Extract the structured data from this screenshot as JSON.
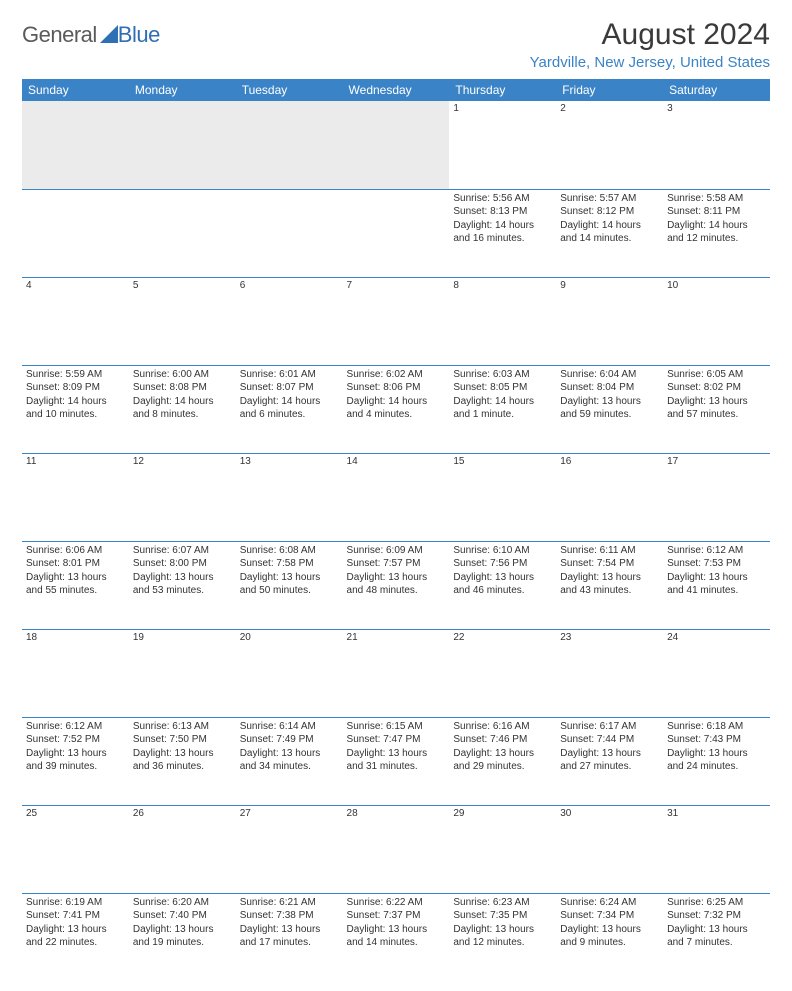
{
  "logo": {
    "part1": "General",
    "part2": "Blue"
  },
  "title": "August 2024",
  "location": "Yardville, New Jersey, United States",
  "colors": {
    "accent": "#3b83c7",
    "daynum_bg": "#ebebeb",
    "text": "#333333",
    "title_text": "#3a3a3a"
  },
  "day_headers": [
    "Sunday",
    "Monday",
    "Tuesday",
    "Wednesday",
    "Thursday",
    "Friday",
    "Saturday"
  ],
  "weeks": [
    [
      null,
      null,
      null,
      null,
      {
        "n": "1",
        "sr": "Sunrise: 5:56 AM",
        "ss": "Sunset: 8:13 PM",
        "d1": "Daylight: 14 hours",
        "d2": "and 16 minutes."
      },
      {
        "n": "2",
        "sr": "Sunrise: 5:57 AM",
        "ss": "Sunset: 8:12 PM",
        "d1": "Daylight: 14 hours",
        "d2": "and 14 minutes."
      },
      {
        "n": "3",
        "sr": "Sunrise: 5:58 AM",
        "ss": "Sunset: 8:11 PM",
        "d1": "Daylight: 14 hours",
        "d2": "and 12 minutes."
      }
    ],
    [
      {
        "n": "4",
        "sr": "Sunrise: 5:59 AM",
        "ss": "Sunset: 8:09 PM",
        "d1": "Daylight: 14 hours",
        "d2": "and 10 minutes."
      },
      {
        "n": "5",
        "sr": "Sunrise: 6:00 AM",
        "ss": "Sunset: 8:08 PM",
        "d1": "Daylight: 14 hours",
        "d2": "and 8 minutes."
      },
      {
        "n": "6",
        "sr": "Sunrise: 6:01 AM",
        "ss": "Sunset: 8:07 PM",
        "d1": "Daylight: 14 hours",
        "d2": "and 6 minutes."
      },
      {
        "n": "7",
        "sr": "Sunrise: 6:02 AM",
        "ss": "Sunset: 8:06 PM",
        "d1": "Daylight: 14 hours",
        "d2": "and 4 minutes."
      },
      {
        "n": "8",
        "sr": "Sunrise: 6:03 AM",
        "ss": "Sunset: 8:05 PM",
        "d1": "Daylight: 14 hours",
        "d2": "and 1 minute."
      },
      {
        "n": "9",
        "sr": "Sunrise: 6:04 AM",
        "ss": "Sunset: 8:04 PM",
        "d1": "Daylight: 13 hours",
        "d2": "and 59 minutes."
      },
      {
        "n": "10",
        "sr": "Sunrise: 6:05 AM",
        "ss": "Sunset: 8:02 PM",
        "d1": "Daylight: 13 hours",
        "d2": "and 57 minutes."
      }
    ],
    [
      {
        "n": "11",
        "sr": "Sunrise: 6:06 AM",
        "ss": "Sunset: 8:01 PM",
        "d1": "Daylight: 13 hours",
        "d2": "and 55 minutes."
      },
      {
        "n": "12",
        "sr": "Sunrise: 6:07 AM",
        "ss": "Sunset: 8:00 PM",
        "d1": "Daylight: 13 hours",
        "d2": "and 53 minutes."
      },
      {
        "n": "13",
        "sr": "Sunrise: 6:08 AM",
        "ss": "Sunset: 7:58 PM",
        "d1": "Daylight: 13 hours",
        "d2": "and 50 minutes."
      },
      {
        "n": "14",
        "sr": "Sunrise: 6:09 AM",
        "ss": "Sunset: 7:57 PM",
        "d1": "Daylight: 13 hours",
        "d2": "and 48 minutes."
      },
      {
        "n": "15",
        "sr": "Sunrise: 6:10 AM",
        "ss": "Sunset: 7:56 PM",
        "d1": "Daylight: 13 hours",
        "d2": "and 46 minutes."
      },
      {
        "n": "16",
        "sr": "Sunrise: 6:11 AM",
        "ss": "Sunset: 7:54 PM",
        "d1": "Daylight: 13 hours",
        "d2": "and 43 minutes."
      },
      {
        "n": "17",
        "sr": "Sunrise: 6:12 AM",
        "ss": "Sunset: 7:53 PM",
        "d1": "Daylight: 13 hours",
        "d2": "and 41 minutes."
      }
    ],
    [
      {
        "n": "18",
        "sr": "Sunrise: 6:12 AM",
        "ss": "Sunset: 7:52 PM",
        "d1": "Daylight: 13 hours",
        "d2": "and 39 minutes."
      },
      {
        "n": "19",
        "sr": "Sunrise: 6:13 AM",
        "ss": "Sunset: 7:50 PM",
        "d1": "Daylight: 13 hours",
        "d2": "and 36 minutes."
      },
      {
        "n": "20",
        "sr": "Sunrise: 6:14 AM",
        "ss": "Sunset: 7:49 PM",
        "d1": "Daylight: 13 hours",
        "d2": "and 34 minutes."
      },
      {
        "n": "21",
        "sr": "Sunrise: 6:15 AM",
        "ss": "Sunset: 7:47 PM",
        "d1": "Daylight: 13 hours",
        "d2": "and 31 minutes."
      },
      {
        "n": "22",
        "sr": "Sunrise: 6:16 AM",
        "ss": "Sunset: 7:46 PM",
        "d1": "Daylight: 13 hours",
        "d2": "and 29 minutes."
      },
      {
        "n": "23",
        "sr": "Sunrise: 6:17 AM",
        "ss": "Sunset: 7:44 PM",
        "d1": "Daylight: 13 hours",
        "d2": "and 27 minutes."
      },
      {
        "n": "24",
        "sr": "Sunrise: 6:18 AM",
        "ss": "Sunset: 7:43 PM",
        "d1": "Daylight: 13 hours",
        "d2": "and 24 minutes."
      }
    ],
    [
      {
        "n": "25",
        "sr": "Sunrise: 6:19 AM",
        "ss": "Sunset: 7:41 PM",
        "d1": "Daylight: 13 hours",
        "d2": "and 22 minutes."
      },
      {
        "n": "26",
        "sr": "Sunrise: 6:20 AM",
        "ss": "Sunset: 7:40 PM",
        "d1": "Daylight: 13 hours",
        "d2": "and 19 minutes."
      },
      {
        "n": "27",
        "sr": "Sunrise: 6:21 AM",
        "ss": "Sunset: 7:38 PM",
        "d1": "Daylight: 13 hours",
        "d2": "and 17 minutes."
      },
      {
        "n": "28",
        "sr": "Sunrise: 6:22 AM",
        "ss": "Sunset: 7:37 PM",
        "d1": "Daylight: 13 hours",
        "d2": "and 14 minutes."
      },
      {
        "n": "29",
        "sr": "Sunrise: 6:23 AM",
        "ss": "Sunset: 7:35 PM",
        "d1": "Daylight: 13 hours",
        "d2": "and 12 minutes."
      },
      {
        "n": "30",
        "sr": "Sunrise: 6:24 AM",
        "ss": "Sunset: 7:34 PM",
        "d1": "Daylight: 13 hours",
        "d2": "and 9 minutes."
      },
      {
        "n": "31",
        "sr": "Sunrise: 6:25 AM",
        "ss": "Sunset: 7:32 PM",
        "d1": "Daylight: 13 hours",
        "d2": "and 7 minutes."
      }
    ]
  ]
}
